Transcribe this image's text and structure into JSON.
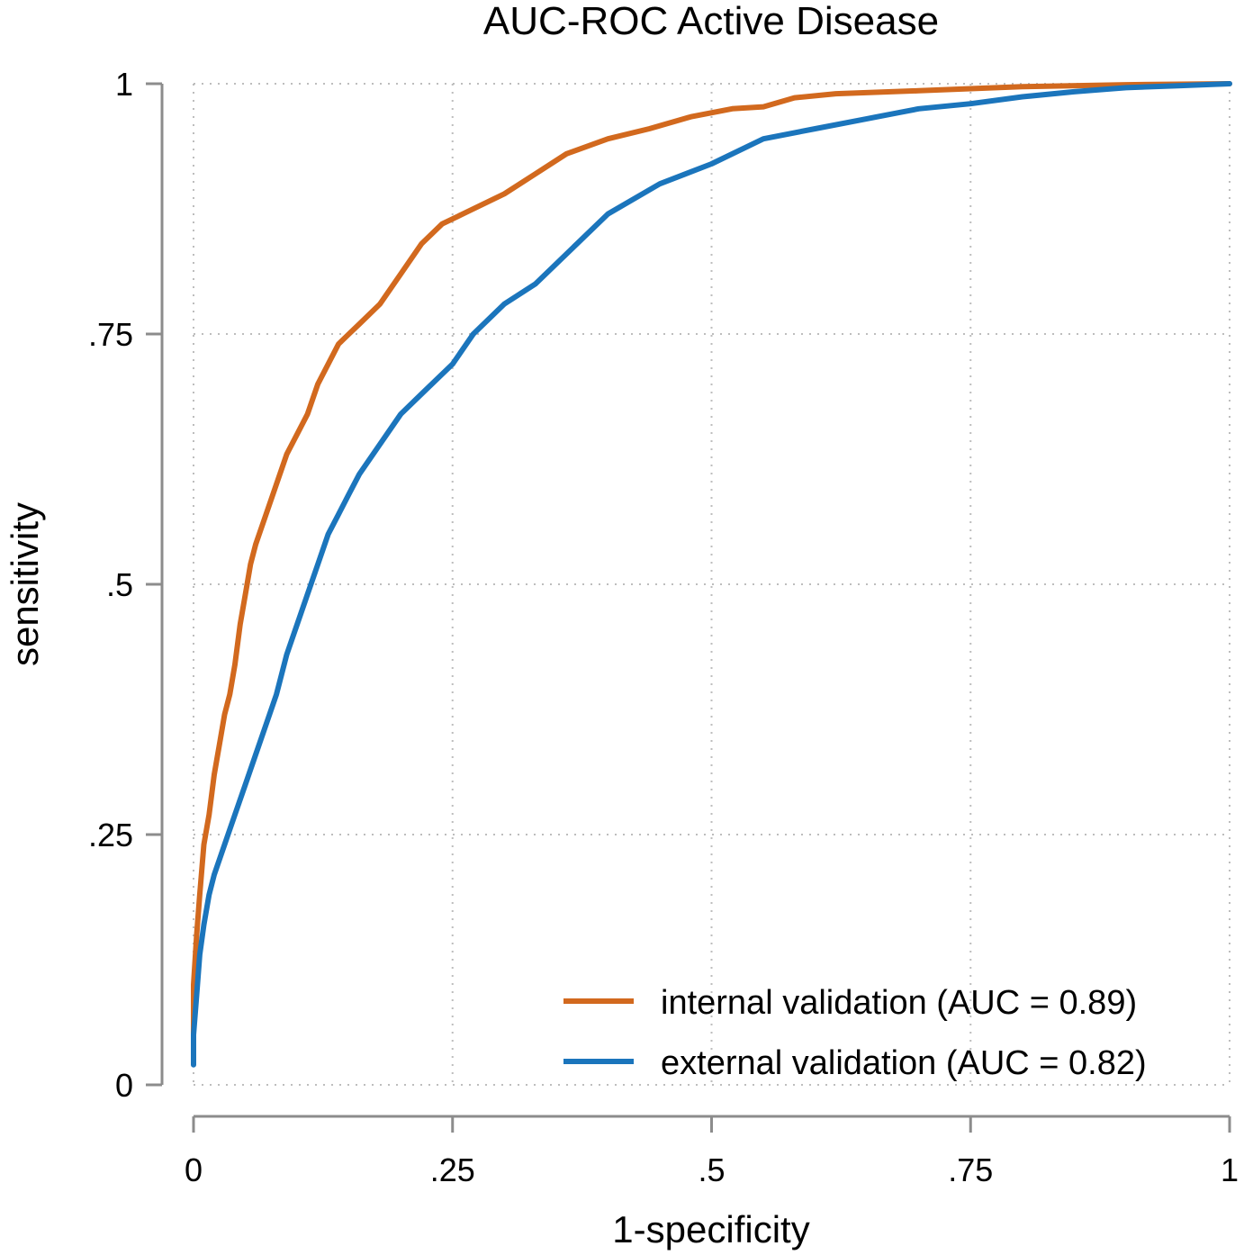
{
  "chart_data": {
    "type": "line",
    "title": "AUC-ROC Active Disease",
    "xlabel": "1-specificity",
    "ylabel": "sensitivity",
    "xlim": [
      0,
      1
    ],
    "ylim": [
      0,
      1
    ],
    "xticks": [
      0,
      0.25,
      0.5,
      0.75,
      1
    ],
    "xtick_labels": [
      "0",
      ".25",
      ".5",
      ".75",
      "1"
    ],
    "yticks": [
      0,
      0.25,
      0.5,
      0.75,
      1
    ],
    "ytick_labels": [
      "0",
      ".25",
      ".5",
      ".75",
      "1"
    ],
    "grid": "dotted",
    "legend_position": "bottom-right",
    "series": [
      {
        "name": "internal validation (AUC = 0.89)",
        "color": "#d2691e",
        "x": [
          0,
          0,
          0.003,
          0.006,
          0.01,
          0.015,
          0.02,
          0.025,
          0.03,
          0.035,
          0.04,
          0.045,
          0.05,
          0.055,
          0.06,
          0.07,
          0.08,
          0.09,
          0.1,
          0.11,
          0.12,
          0.13,
          0.14,
          0.15,
          0.16,
          0.18,
          0.2,
          0.22,
          0.24,
          0.26,
          0.28,
          0.3,
          0.33,
          0.36,
          0.4,
          0.44,
          0.48,
          0.52,
          0.55,
          0.58,
          0.62,
          0.7,
          0.8,
          0.9,
          1.0
        ],
        "y": [
          0.05,
          0.1,
          0.15,
          0.19,
          0.24,
          0.27,
          0.31,
          0.34,
          0.37,
          0.39,
          0.42,
          0.46,
          0.49,
          0.52,
          0.54,
          0.57,
          0.6,
          0.63,
          0.65,
          0.67,
          0.7,
          0.72,
          0.74,
          0.75,
          0.76,
          0.78,
          0.81,
          0.84,
          0.86,
          0.87,
          0.88,
          0.89,
          0.91,
          0.93,
          0.945,
          0.955,
          0.967,
          0.975,
          0.977,
          0.986,
          0.99,
          0.993,
          0.997,
          0.999,
          1.0
        ]
      },
      {
        "name": "external validation (AUC = 0.82)",
        "color": "#1b75bc",
        "x": [
          0,
          0,
          0.003,
          0.006,
          0.01,
          0.015,
          0.02,
          0.03,
          0.04,
          0.05,
          0.06,
          0.07,
          0.08,
          0.09,
          0.1,
          0.11,
          0.12,
          0.13,
          0.14,
          0.15,
          0.16,
          0.18,
          0.2,
          0.22,
          0.25,
          0.27,
          0.3,
          0.33,
          0.36,
          0.4,
          0.45,
          0.5,
          0.55,
          0.6,
          0.65,
          0.7,
          0.75,
          0.8,
          0.85,
          0.9,
          0.95,
          1.0
        ],
        "y": [
          0.02,
          0.05,
          0.09,
          0.13,
          0.16,
          0.19,
          0.21,
          0.24,
          0.27,
          0.3,
          0.33,
          0.36,
          0.39,
          0.43,
          0.46,
          0.49,
          0.52,
          0.55,
          0.57,
          0.59,
          0.61,
          0.64,
          0.67,
          0.69,
          0.72,
          0.75,
          0.78,
          0.8,
          0.83,
          0.87,
          0.9,
          0.92,
          0.945,
          0.955,
          0.965,
          0.975,
          0.98,
          0.987,
          0.992,
          0.996,
          0.998,
          1.0
        ]
      }
    ]
  }
}
